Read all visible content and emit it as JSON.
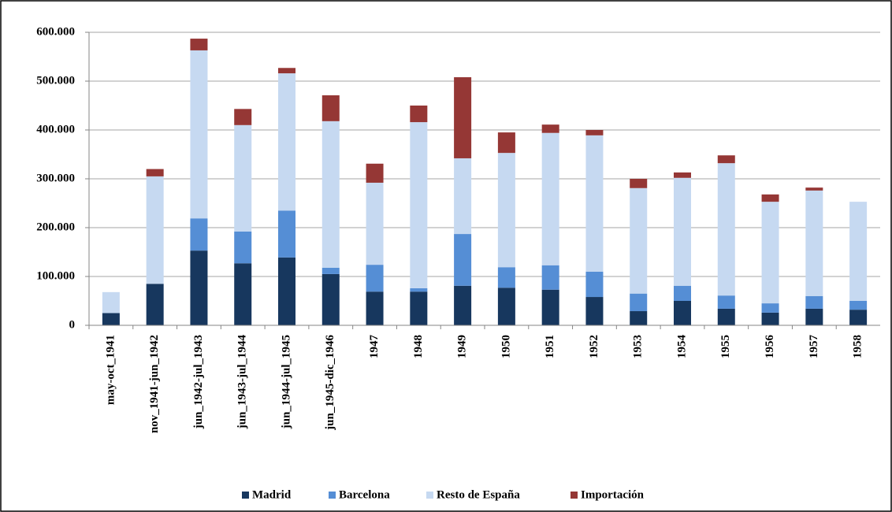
{
  "chart_data": {
    "type": "stacked-bar",
    "categories": [
      "may-oct_1941",
      "nov_1941-jun_1942",
      "jun_1942-jul_1943",
      "jun_1943-jul_1944",
      "jun_1944-jul_1945",
      "jun_1945-dic_1946",
      "1947",
      "1948",
      "1949",
      "1950",
      "1951",
      "1952",
      "1953",
      "1954",
      "1955",
      "1956",
      "1957",
      "1958"
    ],
    "series": [
      {
        "name": "Madrid",
        "color": "#17375e",
        "values": [
          25000,
          85000,
          153000,
          127000,
          139000,
          105000,
          69000,
          69000,
          81000,
          77000,
          73000,
          58000,
          29000,
          50000,
          34000,
          26000,
          34000,
          32000
        ]
      },
      {
        "name": "Barcelona",
        "color": "#558ed5",
        "values": [
          0,
          0,
          66000,
          65000,
          96000,
          13000,
          55000,
          7000,
          106000,
          42000,
          50000,
          52000,
          36000,
          31000,
          27000,
          19000,
          26000,
          18000
        ]
      },
      {
        "name": "Resto de España",
        "color": "#c6d9f1",
        "values": [
          43000,
          220000,
          344000,
          218000,
          281000,
          300000,
          168000,
          340000,
          155000,
          234000,
          271000,
          279000,
          216000,
          221000,
          271000,
          208000,
          216000,
          203000
        ]
      },
      {
        "name": "Importación",
        "color": "#953735",
        "values": [
          0,
          15000,
          24000,
          33000,
          11000,
          53000,
          39000,
          34000,
          166000,
          42000,
          17000,
          11000,
          19000,
          11000,
          16000,
          15000,
          6000,
          0
        ]
      }
    ],
    "ylim": [
      0,
      600000
    ],
    "yticks": [
      0,
      {
        "value": 100000,
        "label": "100.000"
      },
      {
        "value": 200000,
        "label": "200.000"
      },
      {
        "value": 300000,
        "label": "300.000"
      },
      {
        "value": 400000,
        "label": "400.000"
      },
      {
        "value": 500000,
        "label": "500.000"
      },
      {
        "value": 600000,
        "label": "600.000"
      }
    ],
    "grid": true,
    "legend": "bottom"
  }
}
